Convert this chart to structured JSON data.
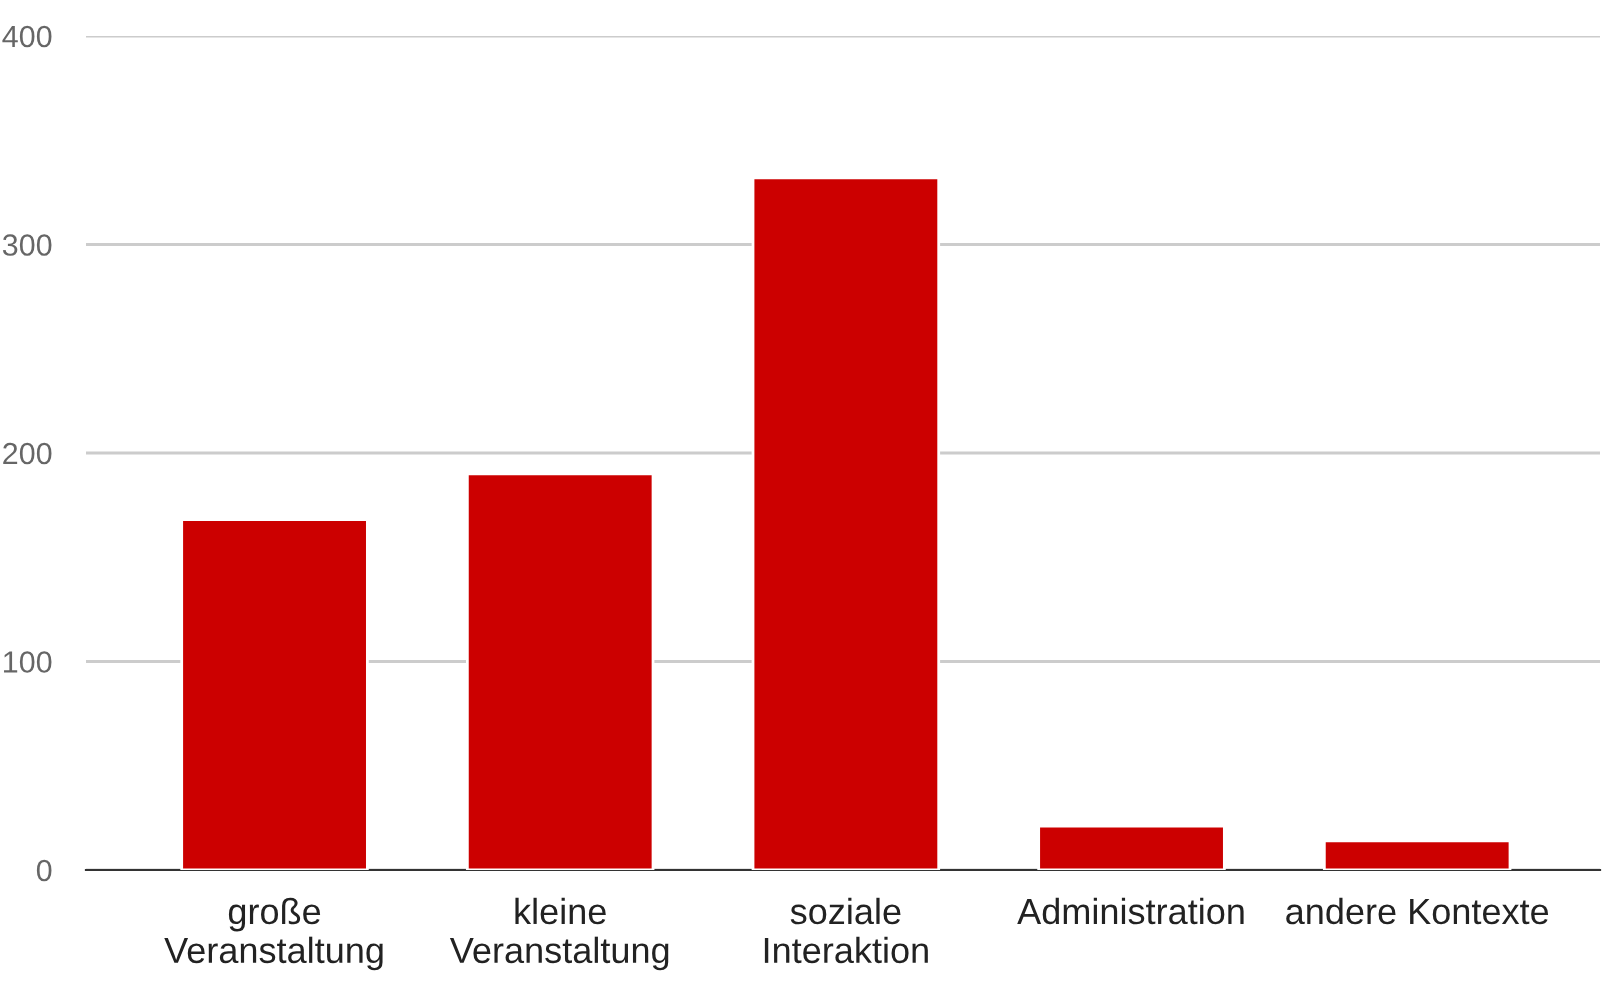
{
  "chart_data": {
    "type": "bar",
    "categories": [
      "große\nVeranstaltung",
      "kleine\nVeranstaltung",
      "soziale\nInteraktion",
      "Administration",
      "andere Kontexte"
    ],
    "values": [
      168,
      190,
      332,
      21,
      14
    ],
    "color": "#cc0000",
    "ylim": [
      0,
      400
    ],
    "yticks": [
      0,
      100,
      200,
      300,
      400
    ],
    "grid": "y"
  }
}
